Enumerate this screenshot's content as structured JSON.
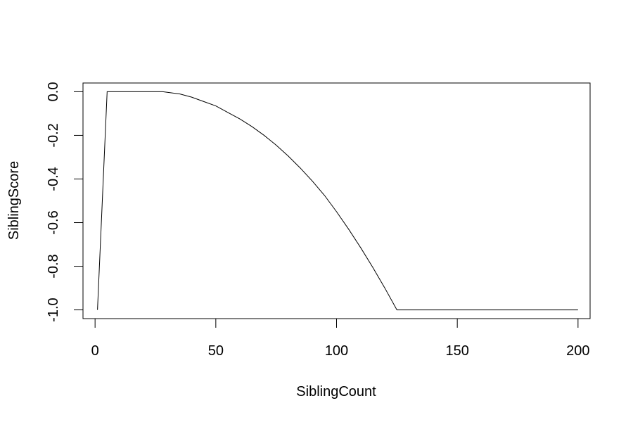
{
  "chart_data": {
    "type": "line",
    "title": "",
    "xlabel": "SiblingCount",
    "ylabel": "SiblingScore",
    "xlim": [
      -5,
      205
    ],
    "ylim": [
      -1.04,
      0.04
    ],
    "grid": false,
    "x_ticks": [
      0,
      50,
      100,
      150,
      200
    ],
    "y_ticks": [
      -1.0,
      -0.8,
      -0.6,
      -0.4,
      -0.2,
      0.0
    ],
    "x_tick_labels": [
      "0",
      "50",
      "100",
      "150",
      "200"
    ],
    "y_tick_labels": [
      "-1.0",
      "-0.8",
      "-0.6",
      "-0.4",
      "-0.2",
      "0.0"
    ],
    "series": [
      {
        "line_color": "#000000",
        "x": [
          1,
          5,
          10,
          20,
          28,
          35,
          40,
          45,
          50,
          55,
          60,
          65,
          70,
          75,
          80,
          85,
          90,
          95,
          100,
          105,
          110,
          115,
          120,
          125,
          130,
          150,
          175,
          200
        ],
        "y": [
          -1.0,
          0.0,
          0.0,
          0.0,
          0.0,
          -0.01,
          -0.025,
          -0.045,
          -0.065,
          -0.095,
          -0.125,
          -0.16,
          -0.2,
          -0.245,
          -0.295,
          -0.35,
          -0.41,
          -0.475,
          -0.55,
          -0.63,
          -0.715,
          -0.805,
          -0.9,
          -1.0,
          -1.0,
          -1.0,
          -1.0,
          -1.0
        ]
      }
    ]
  }
}
